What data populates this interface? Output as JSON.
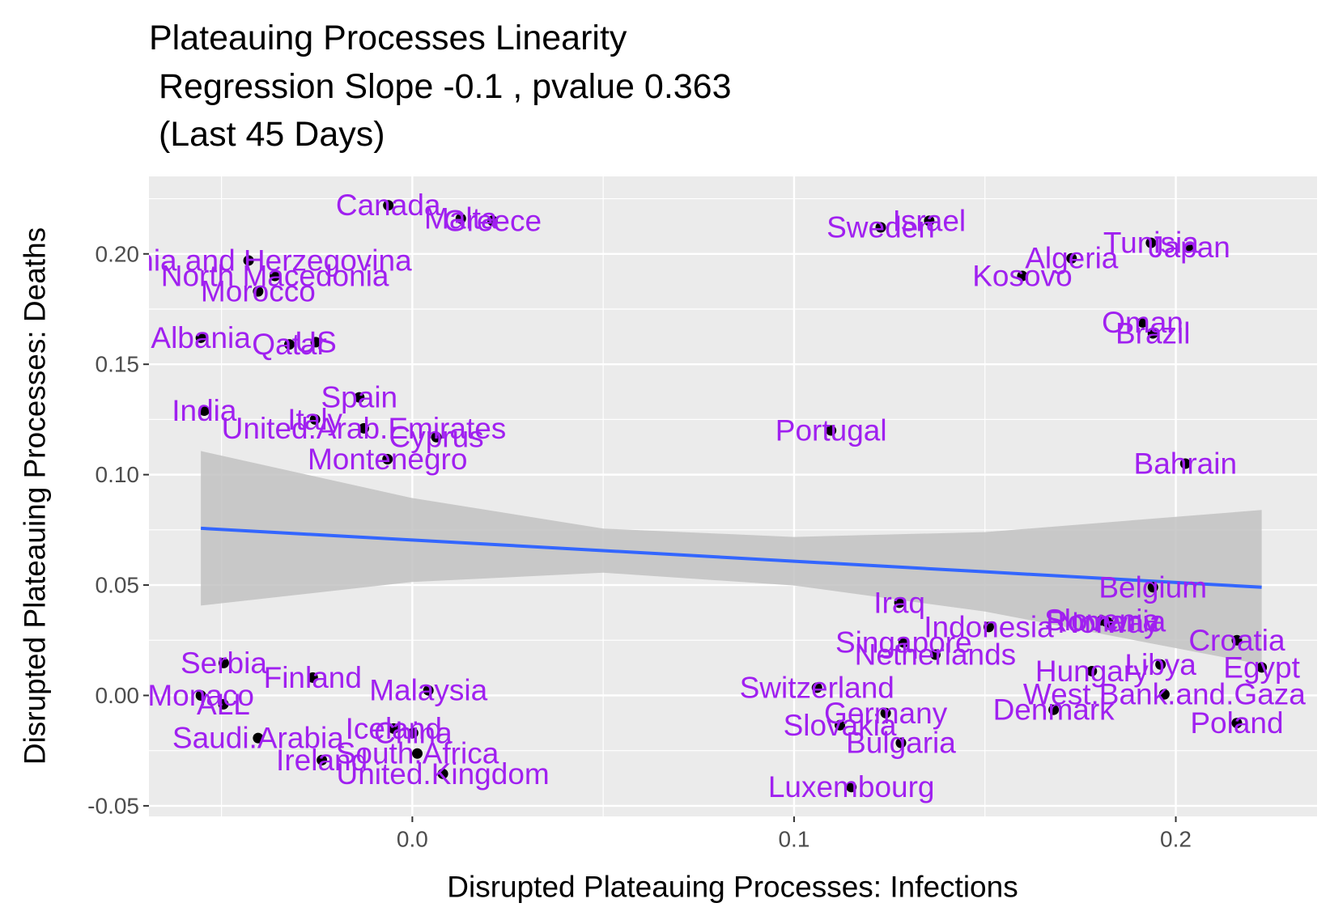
{
  "chart_data": {
    "type": "scatter",
    "title": [
      "Plateauing Processes Linearity",
      " Regression Slope -0.1 , pvalue 0.363",
      " (Last 45 Days)"
    ],
    "x_label": "Disrupted Plateauing Processes: Infections",
    "y_label": "Disrupted Plateauing Processes: Deaths",
    "xlim": [
      -0.069,
      0.237
    ],
    "ylim": [
      -0.0548,
      0.2351
    ],
    "xticks": [
      {
        "value": 0,
        "label": "0.0"
      },
      0.1,
      0.2
    ],
    "yticks": [
      -0.05,
      {
        "value": 0,
        "label": "0.00"
      },
      0.05,
      {
        "value": 0.1,
        "label": "0.10"
      },
      0.15,
      {
        "value": 0.2,
        "label": "0.20"
      }
    ],
    "grid": true,
    "point_color": "#000000",
    "label_color": "#a020f0",
    "labels": [
      "Canada",
      "Malta",
      "Greece",
      "Bosnia and Herzegovina",
      "North Macedonia",
      "Morocco",
      "Albania",
      "Qatar",
      "US",
      "India",
      "Spain",
      "Italy",
      "United.Arab.Emirates",
      "Cyprus",
      "Montenegro",
      "Sweden",
      "Israel",
      "Algeria",
      "Kosovo",
      "Tunisia",
      "Japan",
      "Oman",
      "Brazil",
      "Portugal",
      "Bahrain",
      "Belgium",
      "Iraq",
      "Indonesia",
      "Slovenia",
      "Norway",
      "Romania",
      "Croatia",
      "Singapore",
      "Netherlands",
      "Hungary",
      "Libya",
      "Egypt",
      "West.Bank.and.Gaza",
      "Poland",
      "Denmark",
      "Switzerland",
      "Germany",
      "Slovakia",
      "Bulgaria",
      "Luxembourg",
      "Serbia",
      "Monaco",
      "Finland",
      "Malaysia",
      "ALL",
      "Saudi.Arabia",
      "China",
      "Iceland",
      "South.Africa",
      "Ireland",
      "United.Kingdom"
    ],
    "x": [
      -0.0063,
      0.0127,
      0.021,
      -0.0429,
      -0.036,
      -0.0404,
      -0.0554,
      -0.0322,
      -0.0253,
      -0.0545,
      -0.0139,
      -0.0255,
      -0.0127,
      0.0063,
      -0.0065,
      0.1227,
      0.1354,
      0.1727,
      0.1598,
      0.1935,
      0.2036,
      0.1913,
      0.194,
      0.1097,
      0.2025,
      0.194,
      0.1276,
      0.151,
      0.1806,
      0.1823,
      0.1817,
      0.216,
      0.1287,
      0.137,
      0.178,
      0.196,
      0.2225,
      0.197,
      0.216,
      0.168,
      0.106,
      0.124,
      0.112,
      0.128,
      0.115,
      -0.0494,
      -0.0554,
      -0.0261,
      0.0042,
      -0.0495,
      -0.0404,
      0.0002,
      -0.0049,
      0.0013,
      -0.0237,
      0.008
    ],
    "values": [
      0.222,
      0.216,
      0.215,
      0.197,
      0.19,
      0.183,
      0.162,
      0.159,
      0.16,
      0.129,
      0.135,
      0.125,
      0.121,
      0.117,
      0.107,
      0.212,
      0.215,
      0.198,
      0.19,
      0.205,
      0.203,
      0.169,
      0.164,
      0.12,
      0.105,
      0.049,
      0.042,
      0.031,
      0.034,
      0.033,
      0.0335,
      0.025,
      0.024,
      0.0185,
      0.011,
      0.014,
      0.0127,
      0.0005,
      -0.0125,
      -0.0065,
      0.0035,
      -0.008,
      -0.0135,
      -0.0215,
      -0.0415,
      0.0147,
      0.0,
      0.0081,
      0.0023,
      -0.004,
      -0.0193,
      -0.017,
      -0.015,
      -0.0263,
      -0.0293,
      -0.0355
    ],
    "fit": {
      "color": "#3366ff",
      "band_color": "#c2c2c2",
      "x": [
        -0.0554,
        0.0,
        0.05,
        0.1,
        0.15,
        0.2225
      ],
      "y": [
        0.0757,
        0.0704,
        0.0656,
        0.0608,
        0.056,
        0.049
      ],
      "lower": [
        0.0407,
        0.0514,
        0.0556,
        0.0498,
        0.038,
        0.014
      ],
      "upper": [
        0.1107,
        0.0894,
        0.0756,
        0.0718,
        0.074,
        0.084
      ]
    }
  }
}
